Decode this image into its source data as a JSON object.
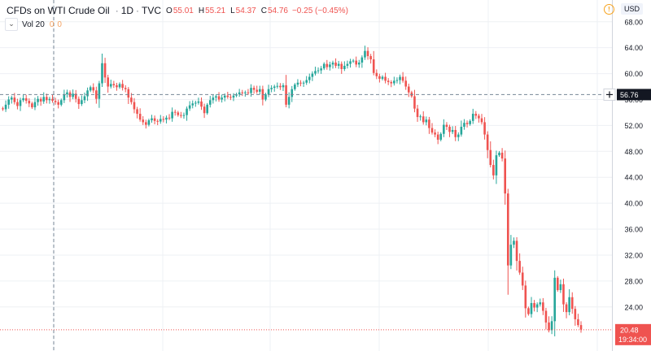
{
  "legend": {
    "symbol": "CFDs on WTI Crude Oil",
    "interval": "1D",
    "source": "TVC",
    "open_label": "O",
    "open": "55.01",
    "high_label": "H",
    "high": "55.21",
    "low_label": "L",
    "low": "54.37",
    "close_label": "C",
    "close": "54.76",
    "change": "−0.25 (−0.45%)",
    "up_color": "#26a69a",
    "down_color": "#ef5350"
  },
  "volume": {
    "label": "Vol 20",
    "value1": "0",
    "value2": "0"
  },
  "scale": {
    "currency": "USD"
  },
  "icons": {
    "info": "info-icon",
    "chevron": "chevron-down-icon",
    "plus": "plus-icon"
  },
  "crosshair": {
    "price": "56.76",
    "time_label": ""
  },
  "last_price": {
    "price": "20.48",
    "countdown": "19:34:00"
  },
  "chart_data": {
    "type": "candlestick",
    "title": "CFDs on WTI Crude Oil · 1D · TVC",
    "ylim": [
      17.2,
      69.6
    ],
    "y_ticks": [
      "68.00",
      "64.00",
      "60.00",
      "56.00",
      "52.00",
      "48.00",
      "44.00",
      "40.00",
      "36.00",
      "32.00",
      "28.00",
      "24.00"
    ],
    "grid": true,
    "close_series": [
      54.5,
      55.2,
      56.0,
      56.3,
      55.6,
      55.0,
      55.9,
      56.2,
      55.8,
      55.4,
      54.8,
      55.6,
      56.1,
      55.7,
      56.4,
      55.9,
      56.1,
      55.8,
      55.6,
      55.2,
      55.9,
      56.8,
      57.1,
      56.4,
      56.9,
      56.1,
      55.3,
      55.9,
      56.5,
      57.4,
      57.9,
      57.4,
      56.1,
      58.5,
      61.6,
      59.4,
      58.0,
      58.4,
      58.2,
      57.9,
      58.4,
      57.8,
      57.6,
      56.3,
      55.6,
      54.5,
      53.8,
      52.9,
      52.5,
      52.1,
      52.8,
      53.1,
      52.7,
      52.6,
      53.0,
      52.9,
      53.2,
      53.1,
      54.1,
      54.0,
      53.6,
      53.5,
      53.6,
      54.6,
      55.1,
      55.4,
      55.5,
      55.7,
      54.9,
      53.9,
      55.2,
      55.9,
      56.3,
      56.5,
      56.0,
      56.3,
      56.6,
      56.4,
      56.3,
      56.6,
      56.8,
      57.1,
      57.0,
      57.1,
      57.0,
      57.8,
      57.5,
      57.2,
      57.6,
      56.0,
      56.8,
      57.6,
      57.8,
      58.0,
      58.1,
      57.9,
      58.2,
      55.2,
      56.4,
      57.6,
      58.3,
      58.6,
      58.5,
      58.6,
      59.0,
      59.5,
      60.0,
      60.4,
      60.5,
      60.8,
      61.5,
      61.0,
      61.4,
      61.7,
      61.2,
      61.5,
      60.7,
      61.2,
      61.5,
      61.9,
      62.0,
      61.4,
      61.7,
      62.5,
      63.5,
      62.7,
      62.2,
      60.1,
      59.6,
      59.2,
      59.5,
      58.9,
      58.7,
      58.5,
      58.9,
      59.0,
      59.5,
      58.9,
      58.0,
      57.1,
      56.5,
      54.6,
      53.3,
      53.4,
      52.5,
      52.9,
      51.6,
      50.9,
      50.6,
      49.8,
      50.7,
      52.1,
      51.8,
      51.0,
      51.3,
      50.2,
      50.6,
      51.8,
      52.4,
      52.2,
      52.7,
      53.8,
      53.5,
      53.1,
      52.5,
      50.6,
      48.2,
      45.9,
      44.3,
      47.4,
      47.8,
      46.9,
      41.5,
      30.4,
      33.6,
      34.2,
      31.1,
      29.3,
      27.3,
      23.8,
      22.9,
      24.6,
      23.9,
      24.4,
      24.7,
      23.4,
      21.6,
      20.4,
      21.8,
      28.5,
      26.6,
      27.5,
      24.4,
      23.2,
      25.5,
      23.7,
      22.1,
      21.2,
      20.5
    ]
  }
}
